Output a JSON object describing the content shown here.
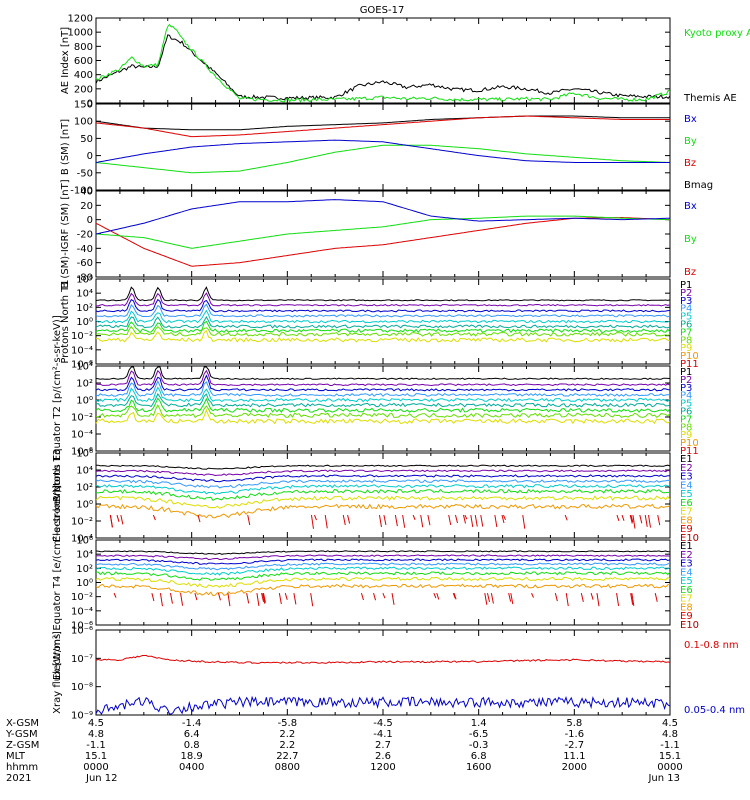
{
  "title": "GOES-17",
  "colors": {
    "black": "#000000",
    "red": "#dd0000",
    "green": "#11dd11",
    "blue": "#0000cc",
    "navy": "#000088",
    "purple": "#7700aa",
    "cyan": "#00cccc",
    "teal": "#00aa99",
    "lime": "#66dd00",
    "yellow": "#dddd00",
    "orange": "#ee9900",
    "darkred": "#aa0000"
  },
  "chart_data": [
    {
      "id": "ae",
      "type": "line",
      "ylabel": "AE Index [nT]",
      "ylim": [
        0,
        1200
      ],
      "yticks": [
        "0",
        "200",
        "400",
        "600",
        "800",
        "1000",
        "1200"
      ],
      "legend": [
        {
          "name": "Kyoto proxy AE",
          "color": "#11dd11"
        },
        {
          "name": "Themis AE",
          "color": "#000000"
        }
      ],
      "x_hours": [
        0,
        1,
        1.5,
        2,
        2.6,
        3.0,
        3.3,
        3.6,
        4,
        5,
        6,
        8,
        10,
        11,
        12,
        13,
        14,
        15,
        16,
        17,
        18,
        19,
        20,
        21,
        22,
        23,
        24
      ],
      "series": [
        {
          "name": "Kyoto proxy AE",
          "color": "#11dd11",
          "values": [
            330,
            480,
            640,
            520,
            540,
            1100,
            1050,
            900,
            750,
            380,
            60,
            40,
            50,
            60,
            80,
            60,
            70,
            50,
            50,
            50,
            60,
            50,
            140,
            70,
            50,
            50,
            160
          ]
        },
        {
          "name": "Themis AE",
          "color": "#000000",
          "values": [
            300,
            450,
            520,
            500,
            520,
            950,
            900,
            850,
            720,
            420,
            90,
            70,
            80,
            240,
            300,
            220,
            260,
            190,
            180,
            230,
            200,
            140,
            200,
            150,
            100,
            90,
            90
          ]
        }
      ]
    },
    {
      "id": "b",
      "type": "line",
      "ylabel": "B (SM) [nT]",
      "ylim": [
        -100,
        150
      ],
      "yticks": [
        "-100",
        "-50",
        "0",
        "50",
        "100",
        "150"
      ],
      "legend": [
        {
          "name": "Bx",
          "color": "#0000cc"
        },
        {
          "name": "By",
          "color": "#11dd11"
        },
        {
          "name": "Bz",
          "color": "#dd0000"
        },
        {
          "name": "Bmag",
          "color": "#000000"
        }
      ],
      "x_hours": [
        0,
        2,
        4,
        6,
        8,
        10,
        12,
        14,
        16,
        18,
        20,
        22,
        24
      ],
      "series": [
        {
          "name": "Bx",
          "color": "#0000cc",
          "values": [
            -20,
            5,
            25,
            35,
            40,
            45,
            40,
            20,
            0,
            -15,
            -20,
            -20,
            -20
          ]
        },
        {
          "name": "By",
          "color": "#11dd11",
          "values": [
            -20,
            -35,
            -50,
            -45,
            -20,
            10,
            30,
            30,
            20,
            5,
            -5,
            -15,
            -20
          ]
        },
        {
          "name": "Bz",
          "color": "#dd0000",
          "values": [
            95,
            80,
            55,
            60,
            70,
            80,
            90,
            100,
            110,
            115,
            110,
            105,
            105
          ]
        },
        {
          "name": "Bmag",
          "color": "#000000",
          "values": [
            100,
            80,
            75,
            75,
            85,
            90,
            95,
            105,
            110,
            115,
            115,
            110,
            110
          ]
        }
      ]
    },
    {
      "id": "db",
      "type": "line",
      "ylabel": "B (SM)-IGRF (SM) [nT]",
      "ylim": [
        -80,
        40
      ],
      "yticks": [
        "-80",
        "-60",
        "-40",
        "-20",
        "0",
        "20",
        "40"
      ],
      "legend": [
        {
          "name": "Bx",
          "color": "#0000cc"
        },
        {
          "name": "By",
          "color": "#11dd11"
        },
        {
          "name": "Bz",
          "color": "#dd0000"
        }
      ],
      "x_hours": [
        0,
        2,
        4,
        6,
        8,
        10,
        12,
        14,
        16,
        18,
        20,
        22,
        24
      ],
      "series": [
        {
          "name": "Bx",
          "color": "#0000cc",
          "values": [
            -20,
            -5,
            15,
            25,
            25,
            28,
            25,
            5,
            -2,
            0,
            2,
            0,
            2
          ]
        },
        {
          "name": "By",
          "color": "#11dd11",
          "values": [
            -20,
            -25,
            -40,
            -30,
            -20,
            -15,
            -10,
            0,
            2,
            5,
            5,
            2,
            0
          ]
        },
        {
          "name": "Bz",
          "color": "#dd0000",
          "values": [
            -5,
            -40,
            -65,
            -60,
            -50,
            -40,
            -35,
            -25,
            -15,
            -5,
            2,
            3,
            0
          ]
        }
      ]
    },
    {
      "id": "p1",
      "type": "line",
      "ylabel": "Protons North T1",
      "log": true,
      "ylim_exp": [
        -6,
        6
      ],
      "yticks": [
        "10⁻⁶",
        "10⁻⁴",
        "10⁻²",
        "10⁰",
        "10²",
        "10⁴",
        "10⁶"
      ],
      "legend": [
        {
          "name": "P1",
          "color": "#000000"
        },
        {
          "name": "P2",
          "color": "#7700aa"
        },
        {
          "name": "P3",
          "color": "#0000cc"
        },
        {
          "name": "P4",
          "color": "#3399ff"
        },
        {
          "name": "P5",
          "color": "#00cccc"
        },
        {
          "name": "P6",
          "color": "#00aa99"
        },
        {
          "name": "P7",
          "color": "#11dd11"
        },
        {
          "name": "P8",
          "color": "#66dd00"
        },
        {
          "name": "P9",
          "color": "#dddd00"
        },
        {
          "name": "P10",
          "color": "#ee9900"
        },
        {
          "name": "P11",
          "color": "#dd0000"
        }
      ],
      "levels_exp": [
        3,
        2.3,
        1.5,
        0.8,
        0,
        -0.7,
        -1.3,
        -1.8,
        -2.6
      ]
    },
    {
      "id": "p2",
      "type": "line",
      "ylabel": "Protons Equator T2 [p/(cm²-s-sr-keV)]",
      "log": true,
      "ylim_exp": [
        -6,
        4
      ],
      "yticks": [
        "10⁻⁶",
        "10⁻⁴",
        "10⁻²",
        "10⁰",
        "10²",
        "10⁴"
      ],
      "legend": [
        {
          "name": "P1",
          "color": "#000000"
        },
        {
          "name": "P2",
          "color": "#7700aa"
        },
        {
          "name": "P3",
          "color": "#0000cc"
        },
        {
          "name": "P4",
          "color": "#3399ff"
        },
        {
          "name": "P5",
          "color": "#00cccc"
        },
        {
          "name": "P6",
          "color": "#00aa99"
        },
        {
          "name": "P7",
          "color": "#11dd11"
        },
        {
          "name": "P8",
          "color": "#66dd00"
        },
        {
          "name": "P9",
          "color": "#dddd00"
        },
        {
          "name": "P10",
          "color": "#ee9900"
        },
        {
          "name": "P11",
          "color": "#dd0000"
        }
      ],
      "levels_exp": [
        2.5,
        1.8,
        1.2,
        0.6,
        0,
        -0.6,
        -1.2,
        -1.8,
        -2.5
      ]
    },
    {
      "id": "e1",
      "type": "line",
      "ylabel": "Electrons North T3",
      "log": true,
      "ylim_exp": [
        -4,
        6
      ],
      "yticks": [
        "10⁻⁴",
        "10⁻²",
        "10⁰",
        "10²",
        "10⁴",
        "10⁶"
      ],
      "legend": [
        {
          "name": "E1",
          "color": "#000000"
        },
        {
          "name": "E2",
          "color": "#7700aa"
        },
        {
          "name": "E3",
          "color": "#0000cc"
        },
        {
          "name": "E4",
          "color": "#3399ff"
        },
        {
          "name": "E5",
          "color": "#00cccc"
        },
        {
          "name": "E6",
          "color": "#11dd11"
        },
        {
          "name": "E7",
          "color": "#dddd00"
        },
        {
          "name": "E8",
          "color": "#ee9900"
        },
        {
          "name": "E9",
          "color": "#dd0000"
        },
        {
          "name": "E10",
          "color": "#aa0000"
        }
      ],
      "levels_exp": [
        4.5,
        3.9,
        3.3,
        2.7,
        2.1,
        1.5,
        0.7,
        -0.3
      ]
    },
    {
      "id": "e2",
      "type": "line",
      "ylabel": "Electrons Equator T4 [e/(cm²-s-sr-keV)]",
      "log": true,
      "ylim_exp": [
        -6,
        6
      ],
      "yticks": [
        "10⁻⁶",
        "10⁻⁴",
        "10⁻²",
        "10⁰",
        "10²",
        "10⁴",
        "10⁶"
      ],
      "legend": [
        {
          "name": "E1",
          "color": "#000000"
        },
        {
          "name": "E2",
          "color": "#7700aa"
        },
        {
          "name": "E3",
          "color": "#0000cc"
        },
        {
          "name": "E4",
          "color": "#3399ff"
        },
        {
          "name": "E5",
          "color": "#00cccc"
        },
        {
          "name": "E6",
          "color": "#11dd11"
        },
        {
          "name": "E7",
          "color": "#dddd00"
        },
        {
          "name": "E8",
          "color": "#ee9900"
        },
        {
          "name": "E9",
          "color": "#dd0000"
        },
        {
          "name": "E10",
          "color": "#aa0000"
        }
      ],
      "levels_exp": [
        4.4,
        3.8,
        3.2,
        2.6,
        2.0,
        1.3,
        0.5,
        -0.5
      ]
    },
    {
      "id": "xray",
      "type": "line",
      "ylabel": "Xray flux [W/m²]",
      "log": true,
      "ylim_exp": [
        -9,
        -6
      ],
      "yticks": [
        "10⁻⁹",
        "10⁻⁸",
        "10⁻⁷",
        "10⁻⁶"
      ],
      "legend": [
        {
          "name": "0.1-0.8 nm",
          "color": "#dd0000"
        },
        {
          "name": "0.05-0.4 nm",
          "color": "#0000cc"
        }
      ],
      "x_hours": [
        0,
        1,
        2,
        3,
        4,
        6,
        8,
        10,
        12,
        14,
        16,
        18,
        20,
        22,
        24
      ],
      "series": [
        {
          "name": "0.1-0.8 nm",
          "color": "#dd0000",
          "values_exp": [
            -7.05,
            -7.05,
            -6.9,
            -7.05,
            -7.1,
            -7.15,
            -7.15,
            -7.15,
            -7.12,
            -7.12,
            -7.12,
            -7.08,
            -7.05,
            -7.1,
            -7.12
          ]
        },
        {
          "name": "0.05-0.4 nm",
          "color": "#0000cc",
          "values_exp": [
            -8.9,
            -8.7,
            -8.5,
            -8.85,
            -8.7,
            -8.55,
            -8.55,
            -8.55,
            -8.55,
            -8.55,
            -8.55,
            -8.55,
            -8.55,
            -8.55,
            -8.6
          ]
        }
      ]
    }
  ],
  "ephemeris": {
    "rows": [
      {
        "label": "X-GSM",
        "values": [
          "4.5",
          "-1.4",
          "-5.8",
          "-4.5",
          "1.4",
          "5.8",
          "4.5"
        ]
      },
      {
        "label": "Y-GSM",
        "values": [
          "4.8",
          "6.4",
          "2.2",
          "-4.1",
          "-6.5",
          "-1.6",
          "4.8"
        ]
      },
      {
        "label": "Z-GSM",
        "values": [
          "-1.1",
          "0.8",
          "2.2",
          "2.7",
          "-0.3",
          "-2.7",
          "-1.1"
        ]
      },
      {
        "label": "MLT",
        "values": [
          "15.1",
          "18.9",
          "22.7",
          "2.6",
          "6.8",
          "11.1",
          "15.1"
        ]
      },
      {
        "label": "hhmm",
        "values": [
          "0000",
          "0400",
          "0800",
          "1200",
          "1600",
          "2000",
          "0000"
        ]
      },
      {
        "label": "2021",
        "values": [
          "Jun 12",
          "",
          "",
          "",
          "",
          "",
          "Jun 13"
        ]
      }
    ]
  }
}
